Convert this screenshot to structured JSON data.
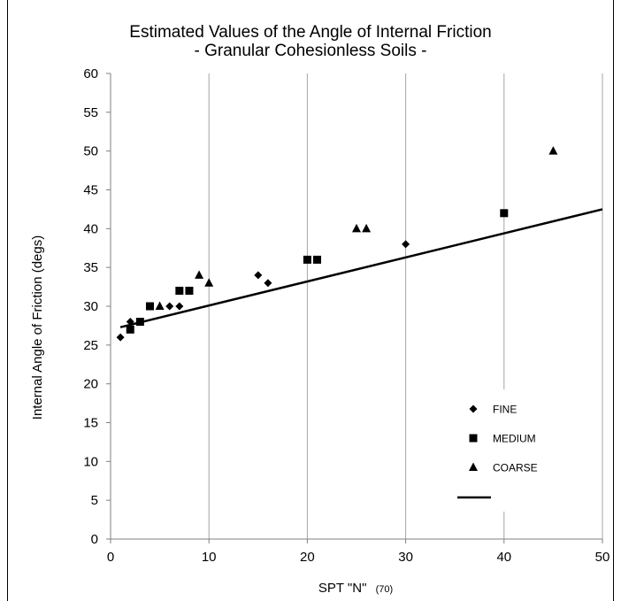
{
  "chart_data": {
    "type": "scatter",
    "title": "Estimated Values of the Angle of Internal Friction",
    "subtitle": "-  Granular Cohesionless Soils  -",
    "xlabel": "SPT \"N\"",
    "xlabel_subscript": "(70)",
    "ylabel": "Internal Angle of Friction  (degs)",
    "xlim": [
      0,
      50
    ],
    "ylim": [
      0,
      60
    ],
    "x_ticks": [
      "0",
      "10",
      "20",
      "30",
      "40",
      "50"
    ],
    "y_ticks": [
      "0",
      "5",
      "10",
      "15",
      "20",
      "25",
      "30",
      "35",
      "40",
      "45",
      "50",
      "55",
      "60"
    ],
    "grid": "vertical",
    "legend_position": "bottom-right",
    "series": [
      {
        "name": "FINE",
        "marker": "diamond",
        "points": [
          [
            1,
            26
          ],
          [
            2,
            28
          ],
          [
            6,
            30
          ],
          [
            7,
            30
          ],
          [
            15,
            34
          ],
          [
            16,
            33
          ],
          [
            30,
            38
          ]
        ]
      },
      {
        "name": "MEDIUM",
        "marker": "square",
        "points": [
          [
            2,
            27
          ],
          [
            3,
            28
          ],
          [
            4,
            30
          ],
          [
            7,
            32
          ],
          [
            8,
            32
          ],
          [
            20,
            36
          ],
          [
            21,
            36
          ],
          [
            40,
            42
          ]
        ]
      },
      {
        "name": "COARSE",
        "marker": "triangle",
        "points": [
          [
            5,
            30
          ],
          [
            9,
            34
          ],
          [
            10,
            33
          ],
          [
            25,
            40
          ],
          [
            26,
            40
          ],
          [
            45,
            50
          ]
        ]
      }
    ],
    "trendline": {
      "points": [
        [
          1,
          27.3
        ],
        [
          50,
          42.5
        ]
      ]
    },
    "colors": {
      "markers": "#000000",
      "grid": "#a6a6a6",
      "axes": "#808080",
      "trendline": "#000000"
    }
  }
}
